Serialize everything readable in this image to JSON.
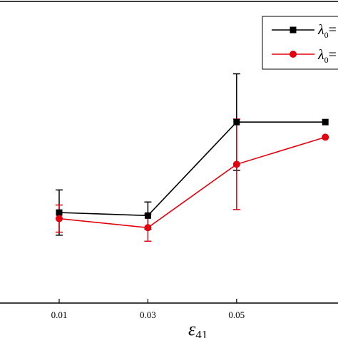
{
  "chart_data": {
    "type": "line",
    "x": [
      0.01,
      0.03,
      0.05,
      0.07
    ],
    "x_tick_labels": [
      "0.01",
      "0.03",
      "0.05"
    ],
    "xlabel": "ε",
    "xlabel_subscript": "41",
    "series": [
      {
        "name": "λ0=",
        "name_symbol": "λ",
        "name_subscript": "0",
        "name_suffix": "=",
        "color": "#000000",
        "marker": "square",
        "values": [
          0.3,
          0.29,
          0.6,
          0.6
        ],
        "error": [
          0.075,
          0.045,
          0.16,
          null
        ]
      },
      {
        "name": "λ0=",
        "name_symbol": "λ",
        "name_subscript": "0",
        "name_suffix": "=",
        "color": "#e3000f",
        "marker": "circle",
        "values": [
          0.28,
          0.25,
          0.46,
          0.55
        ],
        "error": [
          0.045,
          0.045,
          0.15,
          null
        ]
      }
    ],
    "xlim": [
      -0.0035,
      0.0735
    ],
    "ylim": [
      0,
      1
    ],
    "legend": "top-right",
    "grid": false
  }
}
